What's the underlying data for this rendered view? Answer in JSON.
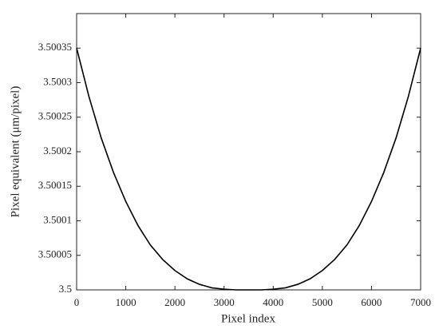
{
  "chart_data": {
    "type": "line",
    "x_label": "Pixel index",
    "y_label": "Pixel equivalent (μm/pixel)",
    "x": [
      0,
      250,
      500,
      750,
      1000,
      1250,
      1500,
      1750,
      2000,
      2250,
      2500,
      2750,
      3000,
      3250,
      3500,
      3750,
      4000,
      4250,
      4500,
      4750,
      5000,
      5250,
      5500,
      5750,
      6000,
      6250,
      6500,
      6750,
      7000
    ],
    "series": [
      {
        "color": "#000000",
        "values": [
          3.50035,
          3.50028,
          3.50022,
          3.50017,
          3.500128,
          3.500093,
          3.500065,
          3.500044,
          3.500028,
          3.500016,
          3.500008,
          3.500003,
          3.500001,
          3.5,
          3.5,
          3.5,
          3.500001,
          3.500003,
          3.500008,
          3.500016,
          3.500028,
          3.500044,
          3.500065,
          3.500093,
          3.500128,
          3.50017,
          3.50022,
          3.50028,
          3.50035
        ]
      }
    ],
    "xlim": [
      0,
      7000
    ],
    "xticks": [
      0,
      1000,
      2000,
      3000,
      4000,
      5000,
      6000,
      7000
    ],
    "ylim": [
      3.5,
      3.5004
    ],
    "yticks": [
      3.5,
      3.50005,
      3.5001,
      3.50015,
      3.5002,
      3.50025,
      3.5003,
      3.50035
    ],
    "grid": false
  }
}
